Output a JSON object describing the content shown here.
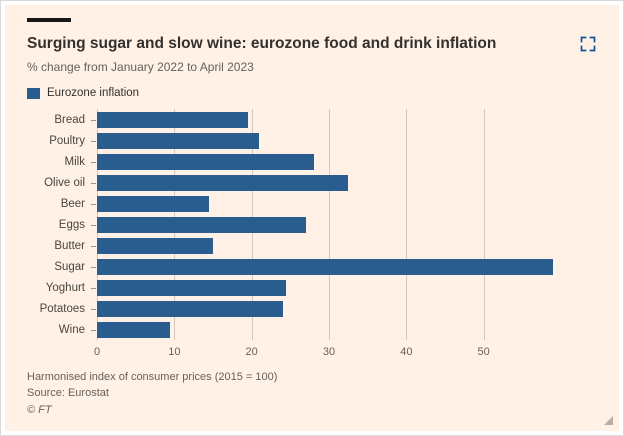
{
  "chart_data": {
    "type": "bar",
    "orientation": "horizontal",
    "title": "Surging sugar and slow wine: eurozone food and drink inflation",
    "subtitle": "% change from January 2022 to April 2023",
    "legend": "Eurozone inflation",
    "categories": [
      "Bread",
      "Poultry",
      "Milk",
      "Olive oil",
      "Beer",
      "Eggs",
      "Butter",
      "Sugar",
      "Yoghurt",
      "Potatoes",
      "Wine"
    ],
    "values": [
      19.5,
      21,
      28,
      32.5,
      14.5,
      27,
      15,
      59,
      24.5,
      24,
      9.5
    ],
    "xticks": [
      0,
      10,
      20,
      30,
      40,
      50
    ],
    "xlim": [
      0,
      60
    ],
    "grid": true,
    "legend_position": "top-left",
    "bar_color": "#2a5d8f",
    "accent_color": "#0f5499"
  },
  "footer": {
    "note": "Harmonised index of consumer prices (2015 = 100)",
    "source": "Source: Eurostat",
    "copyright": "© FT"
  },
  "icons": {
    "expand": "expand-icon",
    "resize": "resize-handle-icon"
  }
}
